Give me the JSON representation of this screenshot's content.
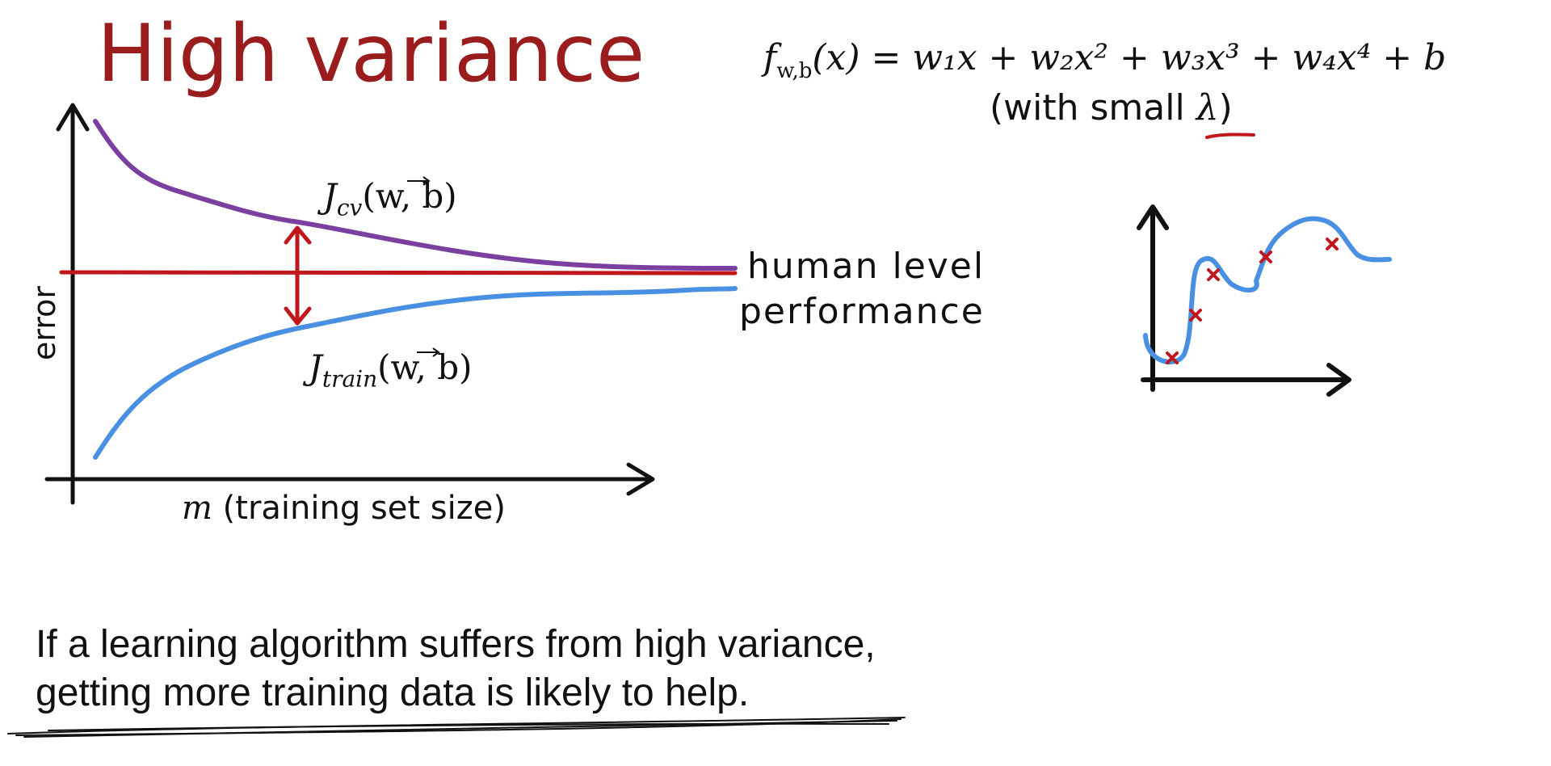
{
  "slide": {
    "title": "High variance",
    "formula": {
      "lhs_f": "f",
      "lhs_sub": "w,b",
      "rhs": "(x) = w₁x + w₂x² + w₃x³ + w₄x⁴ + b",
      "note_prefix": "(with small ",
      "note_lambda": "λ",
      "note_suffix": ")"
    },
    "learning_curve": {
      "y_axis_label": "error",
      "x_axis_var": "m",
      "x_axis_label": " (training set size)",
      "cv_label_J": "J",
      "cv_label_sub": "cv",
      "cv_label_args": "(w, b)",
      "train_label_J": "J",
      "train_label_sub": "train",
      "train_label_args": "(w, b)",
      "human_level_line1": "human level",
      "human_level_line2": "performance",
      "colors": {
        "cv_curve": "#7b3fa0",
        "train_curve": "#4a90e2",
        "human_level": "#c0171d",
        "gap_arrow": "#c0171d"
      }
    },
    "fit_plot": {
      "data_marker": "x",
      "colors": {
        "fit_curve": "#4a90e2",
        "points": "#c0171d"
      }
    },
    "caption_line1": "If a learning algorithm suffers from high variance,",
    "caption_line2": "getting more training data is likely to help."
  }
}
